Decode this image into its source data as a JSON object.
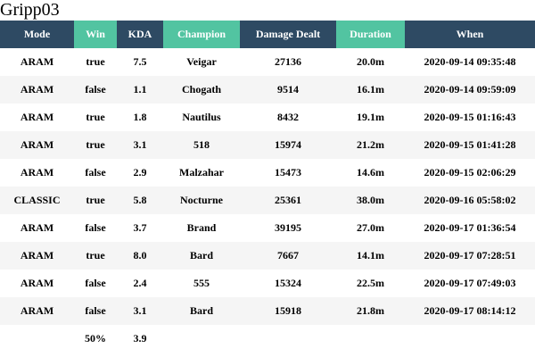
{
  "title": "Gripp03",
  "colors": {
    "header_dark": "#2e4a63",
    "header_green": "#52c4a1",
    "row_alt": "#f5f5f5"
  },
  "columns": [
    {
      "label": "Mode",
      "style": "dark"
    },
    {
      "label": "Win",
      "style": "green"
    },
    {
      "label": "KDA",
      "style": "dark"
    },
    {
      "label": "Champion",
      "style": "green"
    },
    {
      "label": "Damage Dealt",
      "style": "dark"
    },
    {
      "label": "Duration",
      "style": "green"
    },
    {
      "label": "When",
      "style": "dark"
    }
  ],
  "rows": [
    [
      "ARAM",
      "true",
      "7.5",
      "Veigar",
      "27136",
      "20.0m",
      "2020-09-14 09:35:48"
    ],
    [
      "ARAM",
      "false",
      "1.1",
      "Chogath",
      "9514",
      "16.1m",
      "2020-09-14 09:59:09"
    ],
    [
      "ARAM",
      "true",
      "1.8",
      "Nautilus",
      "8432",
      "19.1m",
      "2020-09-15 01:16:43"
    ],
    [
      "ARAM",
      "true",
      "3.1",
      "518",
      "15974",
      "21.2m",
      "2020-09-15 01:41:28"
    ],
    [
      "ARAM",
      "false",
      "2.9",
      "Malzahar",
      "15473",
      "14.6m",
      "2020-09-15 02:06:29"
    ],
    [
      "CLASSIC",
      "true",
      "5.8",
      "Nocturne",
      "25361",
      "38.0m",
      "2020-09-16 05:58:02"
    ],
    [
      "ARAM",
      "false",
      "3.7",
      "Brand",
      "39195",
      "27.0m",
      "2020-09-17 01:36:54"
    ],
    [
      "ARAM",
      "true",
      "8.0",
      "Bard",
      "7667",
      "14.1m",
      "2020-09-17 07:28:51"
    ],
    [
      "ARAM",
      "false",
      "2.4",
      "555",
      "15324",
      "22.5m",
      "2020-09-17 07:49:03"
    ],
    [
      "ARAM",
      "false",
      "3.1",
      "Bard",
      "15918",
      "21.8m",
      "2020-09-17 08:14:12"
    ]
  ],
  "summary": [
    "",
    "50%",
    "3.9",
    "",
    "",
    "",
    ""
  ]
}
